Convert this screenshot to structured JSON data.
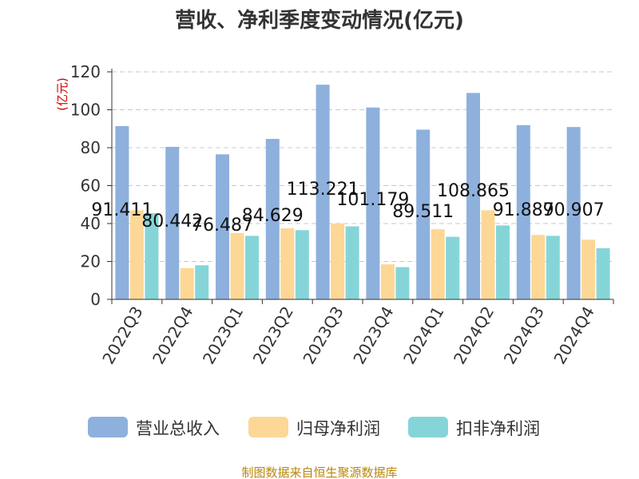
{
  "chart_data": {
    "type": "bar",
    "title": "营收、净利季度变动情况(亿元)",
    "ylabel": "(亿元)",
    "ylim": [
      0,
      120
    ],
    "yticks": [
      0,
      20,
      40,
      60,
      80,
      100,
      120
    ],
    "grid": true,
    "legend_position": "bottom",
    "categories": [
      "2022Q3",
      "2022Q4",
      "2023Q1",
      "2023Q2",
      "2023Q3",
      "2023Q4",
      "2024Q1",
      "2024Q2",
      "2024Q3",
      "2024Q4"
    ],
    "series": [
      {
        "name": "营业总收入",
        "color": "#8eb0dd",
        "values": [
          91.411,
          80.442,
          76.487,
          84.629,
          113.221,
          101.179,
          89.511,
          108.865,
          91.887,
          90.907
        ],
        "labels": [
          "91.411",
          "80.442",
          "76.487",
          "84.629",
          "113.221",
          "101.179",
          "89.511",
          "108.865",
          "91.887",
          "90.907"
        ]
      },
      {
        "name": "归母净利润",
        "color": "#fdd795",
        "values": [
          47,
          16.5,
          35,
          37.5,
          40,
          18.5,
          37,
          47,
          34,
          31.5
        ]
      },
      {
        "name": "扣非净利润",
        "color": "#85d5d8",
        "values": [
          45.5,
          18,
          33.5,
          36.5,
          38.5,
          17,
          33,
          39,
          33.5,
          27
        ]
      }
    ],
    "source": "制图数据来自恒生聚源数据库"
  }
}
